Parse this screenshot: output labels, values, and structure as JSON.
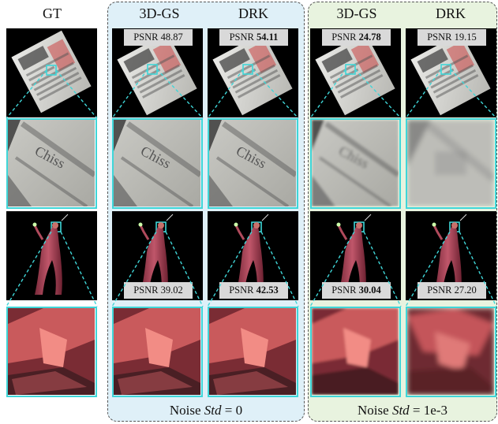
{
  "columns": [
    {
      "id": "gt",
      "title": "GT"
    },
    {
      "id": "gs-0",
      "title": "3D-GS"
    },
    {
      "id": "drk-0",
      "title": "DRK"
    },
    {
      "id": "gs-1",
      "title": "3D-GS"
    },
    {
      "id": "drk-1",
      "title": "DRK"
    }
  ],
  "footers": [
    {
      "prefix": "Noise ",
      "var": "Std",
      "suffix": " = 0"
    },
    {
      "prefix": "Noise ",
      "var": "Std",
      "suffix": " = 1e-3"
    }
  ],
  "psnr_label": "PSNR",
  "psnr": {
    "row1": [
      {
        "value": "48.87",
        "bold": false
      },
      {
        "value": "54.11",
        "bold": true
      },
      {
        "value": "24.78",
        "bold": true
      },
      {
        "value": "19.15",
        "bold": false
      }
    ],
    "row2": [
      {
        "value": "39.02",
        "bold": false
      },
      {
        "value": "42.53",
        "bold": true
      },
      {
        "value": "30.04",
        "bold": true
      },
      {
        "value": "27.20",
        "bold": false
      }
    ]
  },
  "colors": {
    "highlight": "#3fd6d8",
    "group_a_bg": "#dff0f8",
    "group_b_bg": "#e8f3df",
    "badge_bg": "#d9d9d9"
  }
}
